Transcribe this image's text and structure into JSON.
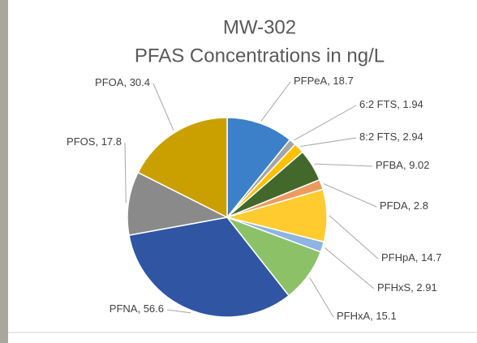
{
  "chart_data": {
    "type": "pie",
    "title": "MW-302",
    "subtitle": "PFAS Concentrations in ng/L",
    "categories": [
      "PFPeA",
      "6:2 FTS",
      "8:2 FTS",
      "PFBA",
      "PFDA",
      "PFHpA",
      "PFHxS",
      "PFHxA",
      "PFNA",
      "PFOS",
      "PFOA"
    ],
    "values": [
      18.7,
      1.94,
      2.94,
      9.02,
      2.8,
      14.7,
      2.91,
      15.1,
      56.6,
      17.8,
      30.4
    ],
    "colors": [
      "#3b80c9",
      "#a5a5a5",
      "#ffc000",
      "#43682b",
      "#ed9a5e",
      "#ffcb2f",
      "#8db4e2",
      "#8cc168",
      "#2f55a3",
      "#8a8a8a",
      "#c9a000"
    ]
  }
}
